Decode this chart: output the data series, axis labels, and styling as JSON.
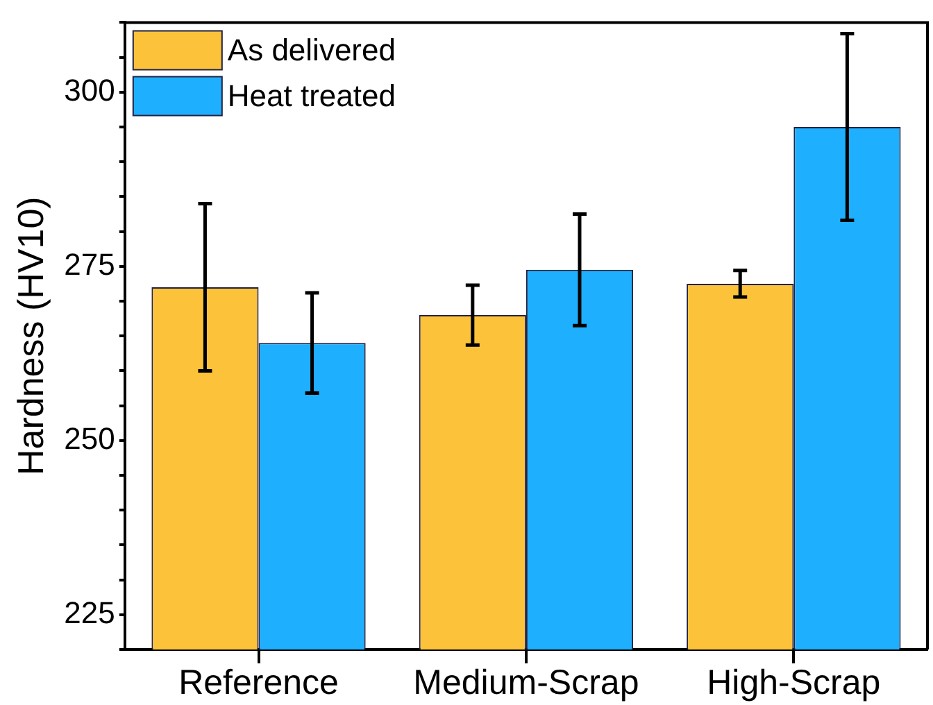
{
  "chart_data": {
    "type": "bar",
    "ylabel": "Hardness (HV10)",
    "categories": [
      "Reference",
      "Medium-Scrap",
      "High-Scrap"
    ],
    "series": [
      {
        "name": "As delivered",
        "color": "#fcc33a",
        "values": [
          272,
          268,
          272.5
        ],
        "errors": [
          12,
          4.3,
          1.9
        ]
      },
      {
        "name": "Heat treated",
        "color": "#1eb0ff",
        "values": [
          264,
          274.5,
          295
        ],
        "errors": [
          7.2,
          8,
          13.4
        ]
      }
    ],
    "ylim": [
      220,
      310
    ],
    "yticks": [
      {
        "value": 220,
        "label": null
      },
      225,
      {
        "value": 230,
        "label": null
      },
      {
        "value": 235,
        "label": null
      },
      {
        "value": 240,
        "label": null
      },
      {
        "value": 245,
        "label": null
      },
      250,
      {
        "value": 255,
        "label": null
      },
      {
        "value": 260,
        "label": null
      },
      {
        "value": 265,
        "label": null
      },
      {
        "value": 270,
        "label": null
      },
      275,
      {
        "value": 280,
        "label": null
      },
      {
        "value": 285,
        "label": null
      },
      {
        "value": 290,
        "label": null
      },
      {
        "value": 295,
        "label": null
      },
      300,
      {
        "value": 305,
        "label": null
      },
      {
        "value": 310,
        "label": null
      }
    ],
    "grid": false,
    "legend": "top left"
  }
}
